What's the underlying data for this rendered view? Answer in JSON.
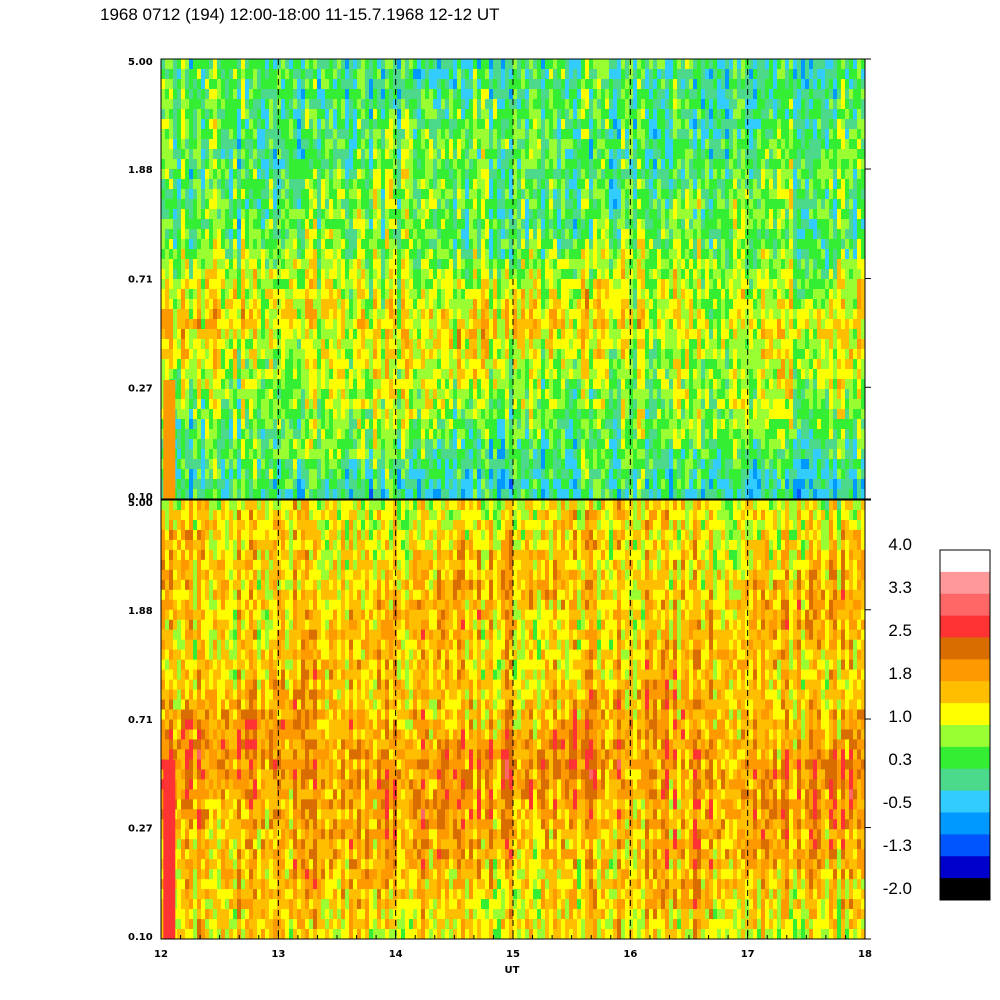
{
  "title": "1968 0712 (194) 12:00-18:00 11-15.7.1968  12-12 UT",
  "chart_data": [
    {
      "type": "heatmap",
      "panel": "upper",
      "x": [
        12,
        18
      ],
      "y_ticks": [
        "5.00",
        "1.88",
        "0.71",
        "0.27",
        "0.10"
      ],
      "y_scale": "log",
      "ylim": [
        0.1,
        5.0
      ],
      "dominant_level_by_height": [
        0.2,
        0.4,
        0.5,
        1.3,
        0.7,
        0.0
      ],
      "vertical_markers": [
        13,
        14,
        15,
        16,
        17
      ]
    },
    {
      "type": "heatmap",
      "panel": "lower",
      "x": [
        12,
        18
      ],
      "y_ticks": [
        "5.00",
        "1.88",
        "0.71",
        "0.27",
        "0.10"
      ],
      "y_scale": "log",
      "ylim": [
        0.1,
        5.0
      ],
      "dominant_level_by_height": [
        1.2,
        1.6,
        1.5,
        2.0,
        1.7,
        1.3
      ],
      "vertical_markers": [
        13,
        14,
        15,
        16,
        17
      ]
    }
  ],
  "x_axis": {
    "label": "UT",
    "ticks": [
      "12",
      "13",
      "14",
      "15",
      "16",
      "17",
      "18"
    ],
    "range": [
      12,
      18
    ]
  },
  "colorbar": {
    "labels": [
      "4.0",
      "3.3",
      "2.5",
      "1.8",
      "1.0",
      "0.3",
      "-0.5",
      "-1.3",
      "-2.0"
    ],
    "colors": [
      "#ffffff",
      "#ff9999",
      "#ff6666",
      "#ff3333",
      "#d96d00",
      "#ff9900",
      "#ffbf00",
      "#ffff00",
      "#99ff33",
      "#33ee33",
      "#4dd98c",
      "#33ccff",
      "#0099ff",
      "#0055ff",
      "#0000cc",
      "#000000"
    ]
  }
}
